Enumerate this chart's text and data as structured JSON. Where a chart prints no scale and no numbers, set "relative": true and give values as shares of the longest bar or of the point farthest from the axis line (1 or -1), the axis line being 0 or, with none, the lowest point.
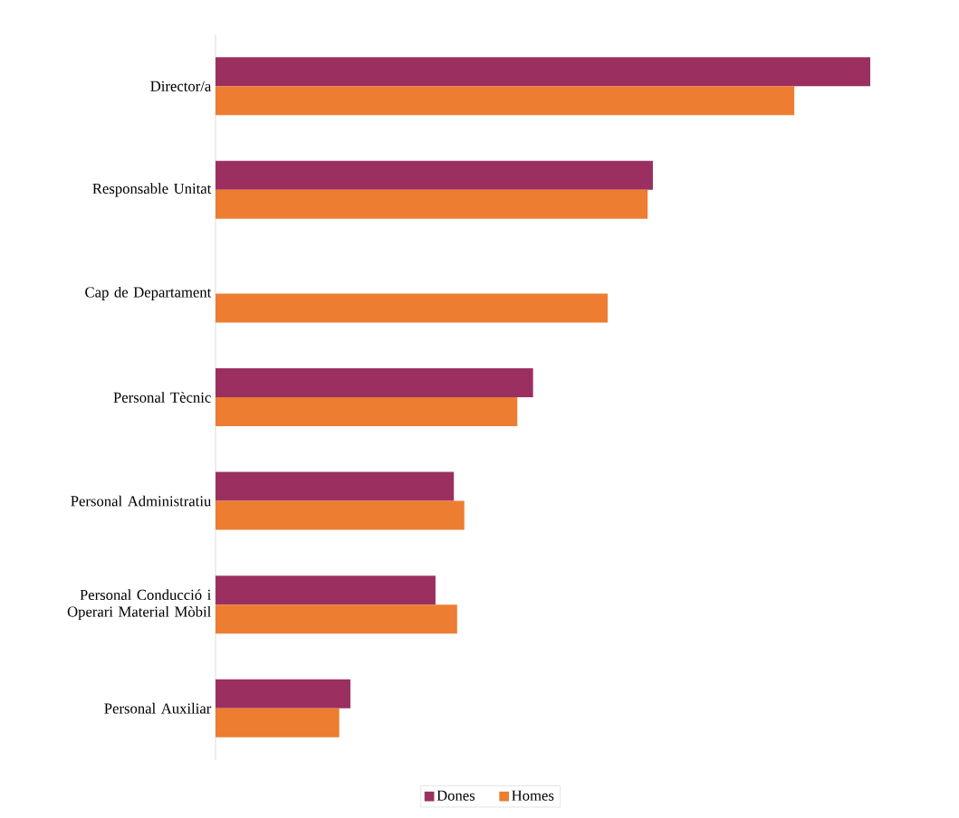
{
  "chart_data": {
    "type": "bar",
    "orientation": "horizontal",
    "relative": true,
    "categories": [
      "Director/a",
      "Responsable Unitat",
      "Cap de Departament",
      "Personal Tècnic",
      "Personal Administratiu",
      "Personal Conducció i Operari Material Mòbil",
      "Personal Auxiliar"
    ],
    "series": [
      {
        "name": "Dones",
        "color": "#9b3060",
        "values": [
          1.0,
          0.668,
          null,
          0.485,
          0.364,
          0.336,
          0.206
        ]
      },
      {
        "name": "Homes",
        "color": "#ed7d31",
        "values": [
          0.884,
          0.66,
          0.599,
          0.461,
          0.38,
          0.369,
          0.189
        ]
      }
    ],
    "legend": "bottom"
  }
}
